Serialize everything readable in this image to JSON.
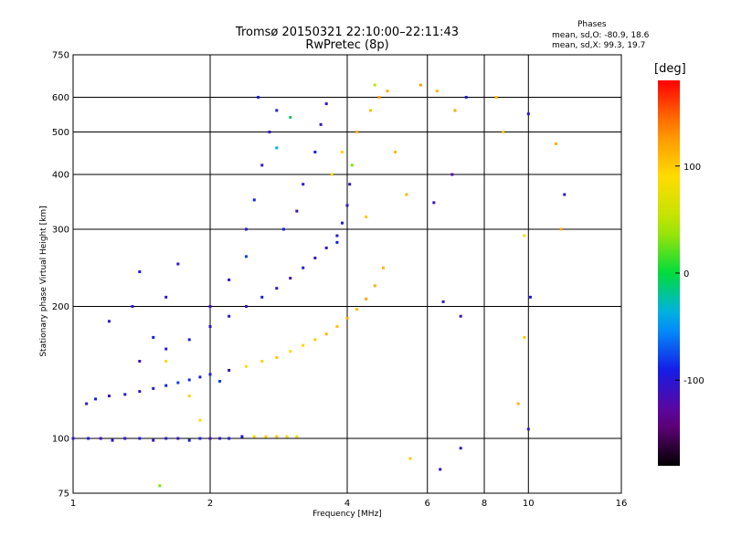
{
  "title_line1": "Tromsø 20150321 22:10:00–22:11:43",
  "title_line2": "RwPretec (8p)",
  "phases": {
    "label": "Phases",
    "line_o": "mean, sd,O: -80.9, 18.6",
    "line_x": "mean, sd,X:  99.3, 19.7"
  },
  "colorbar": {
    "unit": "[deg]",
    "ticks": [
      "100",
      "0",
      "-100"
    ],
    "range": [
      -180,
      180
    ]
  },
  "chart_data": {
    "type": "scatter",
    "xlabel": "Frequency [MHz]",
    "ylabel": "Stationary phase Virtual Height [km]",
    "xscale": "log",
    "yscale": "log",
    "xlim": [
      1,
      16
    ],
    "ylim": [
      75,
      750
    ],
    "xticks": [
      1,
      2,
      4,
      6,
      8,
      10,
      16
    ],
    "xtick_labels": [
      "1",
      "2",
      "4",
      "6",
      "8",
      "10",
      "16"
    ],
    "yticks": [
      75,
      100,
      200,
      300,
      400,
      500,
      600,
      750
    ],
    "ytick_labels": [
      "75",
      "100",
      "200",
      "300",
      "400",
      "500",
      "600",
      "750"
    ],
    "grid": true,
    "color_variable": "phase [deg]",
    "series": [
      {
        "group": "ground-echo",
        "points": [
          [
            1.0,
            100,
            -105
          ],
          [
            1.08,
            100,
            -100
          ],
          [
            1.15,
            100,
            -110
          ],
          [
            1.22,
            99,
            -100
          ],
          [
            1.3,
            100,
            -105
          ],
          [
            1.4,
            100,
            -95
          ],
          [
            1.5,
            99,
            -110
          ],
          [
            1.6,
            100,
            -100
          ],
          [
            1.7,
            100,
            -105
          ],
          [
            1.8,
            99,
            -95
          ],
          [
            1.9,
            100,
            -100
          ],
          [
            2.0,
            100,
            -110
          ],
          [
            2.1,
            100,
            -105
          ],
          [
            2.2,
            100,
            -100
          ],
          [
            2.35,
            101,
            -95
          ],
          [
            2.5,
            101,
            80
          ],
          [
            2.65,
            101,
            95
          ],
          [
            2.8,
            101,
            100
          ],
          [
            2.95,
            101,
            90
          ],
          [
            3.1,
            101,
            85
          ]
        ]
      },
      {
        "group": "trace-low",
        "points": [
          [
            1.07,
            120,
            -100
          ],
          [
            1.12,
            123,
            -95
          ],
          [
            1.2,
            125,
            -110
          ],
          [
            1.3,
            126,
            -100
          ],
          [
            1.4,
            128,
            -105
          ],
          [
            1.5,
            130,
            -95
          ],
          [
            1.6,
            132,
            -90
          ],
          [
            1.7,
            134,
            -80
          ],
          [
            1.8,
            136,
            -85
          ],
          [
            1.9,
            138,
            -95
          ],
          [
            2.0,
            140,
            -100
          ],
          [
            2.2,
            143,
            -105
          ],
          [
            2.4,
            146,
            90
          ],
          [
            2.6,
            150,
            95
          ],
          [
            2.8,
            153,
            100
          ],
          [
            3.0,
            158,
            90
          ],
          [
            3.2,
            163,
            95
          ],
          [
            3.4,
            168,
            100
          ],
          [
            3.6,
            173,
            110
          ],
          [
            3.8,
            180,
            105
          ],
          [
            4.0,
            188,
            115
          ],
          [
            4.2,
            197,
            110
          ],
          [
            4.4,
            208,
            120
          ],
          [
            4.6,
            223,
            115
          ],
          [
            4.8,
            245,
            110
          ]
        ]
      },
      {
        "group": "o-mode-cusp",
        "points": [
          [
            1.4,
            150,
            -110
          ],
          [
            1.6,
            160,
            -100
          ],
          [
            1.8,
            168,
            -95
          ],
          [
            2.0,
            180,
            -105
          ],
          [
            2.2,
            190,
            -100
          ],
          [
            2.4,
            200,
            -110
          ],
          [
            2.6,
            210,
            -95
          ],
          [
            2.8,
            220,
            -100
          ],
          [
            3.0,
            232,
            -110
          ],
          [
            3.2,
            245,
            -100
          ],
          [
            3.4,
            258,
            -105
          ],
          [
            3.6,
            272,
            -110
          ],
          [
            3.8,
            290,
            -100
          ],
          [
            3.9,
            310,
            -95
          ],
          [
            4.0,
            340,
            -105
          ],
          [
            4.05,
            380,
            -110
          ]
        ]
      },
      {
        "group": "diffuse-cloud",
        "points": [
          [
            2.4,
            300,
            -100
          ],
          [
            2.5,
            350,
            -95
          ],
          [
            2.6,
            420,
            -110
          ],
          [
            2.7,
            500,
            -105
          ],
          [
            2.8,
            560,
            -100
          ],
          [
            2.55,
            600,
            -95
          ],
          [
            2.9,
            300,
            -90
          ],
          [
            3.1,
            330,
            -110
          ],
          [
            3.2,
            380,
            -100
          ],
          [
            3.4,
            450,
            -90
          ],
          [
            3.5,
            520,
            -105
          ],
          [
            3.6,
            580,
            -100
          ],
          [
            2.4,
            260,
            -80
          ],
          [
            2.2,
            230,
            -100
          ],
          [
            2.0,
            200,
            -110
          ],
          [
            1.7,
            250,
            -100
          ],
          [
            1.6,
            210,
            -105
          ],
          [
            3.7,
            400,
            80
          ],
          [
            3.9,
            450,
            95
          ],
          [
            4.2,
            500,
            110
          ],
          [
            4.5,
            560,
            105
          ],
          [
            4.7,
            600,
            120
          ],
          [
            4.9,
            620,
            115
          ],
          [
            5.1,
            450,
            110
          ],
          [
            4.4,
            320,
            100
          ],
          [
            3.8,
            280,
            -90
          ],
          [
            2.8,
            460,
            -40
          ],
          [
            3.0,
            540,
            -10
          ],
          [
            4.1,
            420,
            30
          ],
          [
            4.6,
            640,
            45
          ]
        ]
      },
      {
        "group": "sparse-high-freq",
        "points": [
          [
            5.8,
            640,
            120
          ],
          [
            6.3,
            620,
            110
          ],
          [
            6.9,
            560,
            115
          ],
          [
            7.3,
            600,
            -100
          ],
          [
            8.5,
            600,
            110
          ],
          [
            10.0,
            550,
            -100
          ],
          [
            11.5,
            470,
            115
          ],
          [
            12.0,
            360,
            -95
          ],
          [
            6.8,
            400,
            -120
          ],
          [
            9.8,
            290,
            90
          ],
          [
            10.1,
            210,
            -100
          ],
          [
            11.8,
            300,
            120
          ],
          [
            6.2,
            345,
            -110
          ],
          [
            8.8,
            500,
            100
          ],
          [
            5.4,
            360,
            110
          ]
        ]
      },
      {
        "group": "scatter-low",
        "points": [
          [
            1.35,
            200,
            -100
          ],
          [
            1.4,
            240,
            -95
          ],
          [
            1.5,
            170,
            -90
          ],
          [
            1.2,
            185,
            -100
          ],
          [
            1.6,
            150,
            80
          ],
          [
            1.8,
            125,
            95
          ],
          [
            1.9,
            110,
            90
          ],
          [
            2.1,
            135,
            -80
          ],
          [
            1.55,
            78,
            30
          ],
          [
            6.5,
            205,
            -100
          ],
          [
            7.1,
            190,
            -110
          ],
          [
            5.5,
            90,
            100
          ],
          [
            6.4,
            85,
            -105
          ],
          [
            7.1,
            95,
            -100
          ],
          [
            9.5,
            120,
            110
          ],
          [
            10.0,
            105,
            -100
          ],
          [
            9.8,
            170,
            100
          ]
        ]
      }
    ]
  }
}
